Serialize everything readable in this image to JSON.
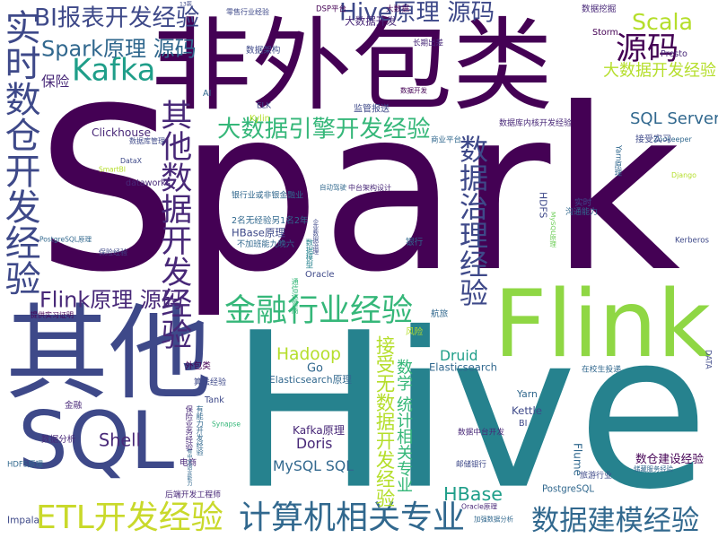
{
  "palette": {
    "dark_purple": "#440154",
    "purple": "#482878",
    "indigo": "#3e4989",
    "blue": "#31688e",
    "teal": "#26828e",
    "green_teal": "#1f9e89",
    "green": "#35b779",
    "light_green": "#6ece58",
    "lime": "#b5de2b",
    "yellow": "#c9d92b"
  },
  "words": [
    {
      "text": "Spark",
      "color": "#440154",
      "orient": "h"
    },
    {
      "text": "Hive",
      "color": "#26828e",
      "orient": "h"
    },
    {
      "text": "非外包类",
      "color": "#440154",
      "orient": "h"
    },
    {
      "text": "其他",
      "color": "#3e4989",
      "orient": "h"
    },
    {
      "text": "Flink",
      "color": "#8fd744",
      "orient": "h"
    },
    {
      "text": "SQL",
      "color": "#3e4989",
      "orient": "h"
    },
    {
      "text": "实时数仓开发经验",
      "color": "#3e4989",
      "orient": "v"
    },
    {
      "text": "其他数据开发经验",
      "color": "#482878",
      "orient": "v"
    },
    {
      "text": "数据治理经验",
      "color": "#3e4989",
      "orient": "v"
    },
    {
      "text": "BI报表开发经验",
      "color": "#3e4989",
      "orient": "h"
    },
    {
      "text": "Spark原理 源码",
      "color": "#31688e",
      "orient": "h"
    },
    {
      "text": "Kafka",
      "color": "#1f9e89",
      "orient": "h"
    },
    {
      "text": "Hive原理 源码",
      "color": "#3e4989",
      "orient": "h"
    },
    {
      "text": "Scala",
      "color": "#b5de2b",
      "orient": "h"
    },
    {
      "text": "源码",
      "color": "#440154",
      "orient": "h"
    },
    {
      "text": "大数据开发经验",
      "color": "#b5de2b",
      "orient": "h"
    },
    {
      "text": "大数据引擎开发经验",
      "color": "#35b779",
      "orient": "h"
    },
    {
      "text": "SQL Server",
      "color": "#31688e",
      "orient": "h"
    },
    {
      "text": "金融行业经验",
      "color": "#35b779",
      "orient": "h"
    },
    {
      "text": "Flink原理 源码",
      "color": "#482878",
      "orient": "h"
    },
    {
      "text": "ETL开发经验",
      "color": "#c9d92b",
      "orient": "h"
    },
    {
      "text": "计算机相关专业",
      "color": "#31688e",
      "orient": "h"
    },
    {
      "text": "数据建模经验",
      "color": "#31688e",
      "orient": "h"
    },
    {
      "text": "接受无数据开发经验",
      "color": "#b5de2b",
      "orient": "v"
    },
    {
      "text": "数学 统计相关专业",
      "color": "#35b779",
      "orient": "v"
    },
    {
      "text": "Hadoop",
      "color": "#b5de2b",
      "orient": "h"
    },
    {
      "text": "Shell",
      "color": "#482878",
      "orient": "h"
    },
    {
      "text": "MySQL SQL",
      "color": "#31688e",
      "orient": "h"
    },
    {
      "text": "HBase",
      "color": "#1f9e89",
      "orient": "h"
    },
    {
      "text": "Doris",
      "color": "#482878",
      "orient": "h"
    },
    {
      "text": "Kafka原理",
      "color": "#482878",
      "orient": "h"
    },
    {
      "text": "Druid",
      "color": "#1f9e89",
      "orient": "h"
    },
    {
      "text": "Elasticsearch",
      "color": "#31688e",
      "orient": "h"
    },
    {
      "text": "Elasticsearch原理",
      "color": "#31688e",
      "orient": "h"
    },
    {
      "text": "Go",
      "color": "#31688e",
      "orient": "h"
    },
    {
      "text": "Kettle",
      "color": "#3e4989",
      "orient": "h"
    },
    {
      "text": "数仓建设经验",
      "color": "#440154",
      "orient": "h"
    },
    {
      "text": "PostgreSQL",
      "color": "#31688e",
      "orient": "h"
    },
    {
      "text": "HBase原理",
      "color": "#3e4989",
      "orient": "h"
    },
    {
      "text": "Clickhouse",
      "color": "#482878",
      "orient": "h"
    },
    {
      "text": "保险",
      "color": "#482878",
      "orient": "h"
    },
    {
      "text": "Oracle",
      "color": "#3e4989",
      "orient": "h"
    },
    {
      "text": "Impala",
      "color": "#3e4989",
      "orient": "h"
    },
    {
      "text": "Flume",
      "color": "#31688e",
      "orient": "v"
    },
    {
      "text": "Yarn",
      "color": "#31688e",
      "orient": "h"
    },
    {
      "text": "HDFS",
      "color": "#3e4989",
      "orient": "v"
    },
    {
      "text": "Django",
      "color": "#b5de2b",
      "orient": "h"
    },
    {
      "text": "Zookeeper",
      "color": "#31688e",
      "orient": "h"
    },
    {
      "text": "Presto",
      "color": "#482878",
      "orient": "h"
    },
    {
      "text": "Storm",
      "color": "#440154",
      "orient": "h"
    },
    {
      "text": "Kerberos",
      "color": "#3e4989",
      "orient": "h"
    },
    {
      "text": "dataworks",
      "color": "#482878",
      "orient": "h"
    },
    {
      "text": "DataX",
      "color": "#3e4989",
      "orient": "h"
    },
    {
      "text": "SmartBI",
      "color": "#b5de2b",
      "orient": "h"
    },
    {
      "text": "Kylin",
      "color": "#b5de2b",
      "orient": "h"
    },
    {
      "text": "ELK",
      "color": "#3e4989",
      "orient": "h"
    },
    {
      "text": "AI",
      "color": "#31688e",
      "orient": "h"
    },
    {
      "text": "DSP平台",
      "color": "#440154",
      "orient": "h"
    },
    {
      "text": "大数据开发",
      "color": "#482878",
      "orient": "h"
    },
    {
      "text": "大数据",
      "color": "#440154",
      "orient": "h"
    },
    {
      "text": "零售行业经验",
      "color": "#3e4989",
      "orient": "h"
    },
    {
      "text": "13薪",
      "color": "#3e4989",
      "orient": "h"
    },
    {
      "text": "数据挖掘",
      "color": "#482878",
      "orient": "h"
    },
    {
      "text": "长期出差",
      "color": "#482878",
      "orient": "h"
    },
    {
      "text": "数据架构",
      "color": "#3e4989",
      "orient": "h"
    },
    {
      "text": "数据开发",
      "color": "#440154",
      "orient": "h"
    },
    {
      "text": "监管报送",
      "color": "#3e4989",
      "orient": "h"
    },
    {
      "text": "数据库内核开发经验",
      "color": "#482878",
      "orient": "h"
    },
    {
      "text": "商业平台",
      "color": "#31688e",
      "orient": "h"
    },
    {
      "text": "接受实习",
      "color": "#3e4989",
      "orient": "h"
    },
    {
      "text": "Yarn原理",
      "color": "#31688e",
      "orient": "v"
    },
    {
      "text": "数据库管理",
      "color": "#3e4989",
      "orient": "h"
    },
    {
      "text": "自动驾驶",
      "color": "#31688e",
      "orient": "h"
    },
    {
      "text": "中台架构设计",
      "color": "#482878",
      "orient": "h"
    },
    {
      "text": "银行业或非银金融业",
      "color": "#31688e",
      "orient": "h"
    },
    {
      "text": "2名无经验另1名2年",
      "color": "#31688e",
      "orient": "h"
    },
    {
      "text": "不加班能九晚六",
      "color": "#31688e",
      "orient": "h"
    },
    {
      "text": "PostgreSQL原理",
      "color": "#31688e",
      "orient": "h"
    },
    {
      "text": "保险经验",
      "color": "#3e4989",
      "orient": "h"
    },
    {
      "text": "提供实习证明",
      "color": "#440154",
      "orient": "h"
    },
    {
      "text": "银行",
      "color": "#31688e",
      "orient": "h"
    },
    {
      "text": "数据模型",
      "color": "#26828e",
      "orient": "v"
    },
    {
      "text": "电商",
      "color": "#482878",
      "orient": "h"
    },
    {
      "text": "MySQL原理",
      "color": "#6ece58",
      "orient": "v"
    },
    {
      "text": "沟通能力",
      "color": "#31688e",
      "orient": "h"
    },
    {
      "text": "实时",
      "color": "#3e4989",
      "orient": "h"
    },
    {
      "text": "航旅",
      "color": "#31688e",
      "orient": "h"
    },
    {
      "text": "风险",
      "color": "#b5de2b",
      "orient": "h"
    },
    {
      "text": "外包类",
      "color": "#440154",
      "orient": "h"
    },
    {
      "text": "算法经验",
      "color": "#3e4989",
      "orient": "h"
    },
    {
      "text": "Tank",
      "color": "#3e4989",
      "orient": "h"
    },
    {
      "text": "金融",
      "color": "#482878",
      "orient": "h"
    },
    {
      "text": "数据分析",
      "color": "#482878",
      "orient": "h"
    },
    {
      "text": "后端开发工程师",
      "color": "#482878",
      "orient": "h"
    },
    {
      "text": "HDFS原理",
      "color": "#31688e",
      "orient": "h"
    },
    {
      "text": "在校生投递",
      "color": "#31688e",
      "orient": "h"
    },
    {
      "text": "DATA",
      "color": "#3e4989",
      "orient": "v"
    },
    {
      "text": "BI",
      "color": "#3e4989",
      "orient": "h"
    },
    {
      "text": "数据中台开发",
      "color": "#482878",
      "orient": "h"
    },
    {
      "text": "邮储银行",
      "color": "#3e4989",
      "orient": "h"
    },
    {
      "text": "Oracle原理",
      "color": "#482878",
      "orient": "h"
    },
    {
      "text": "加强数据分析",
      "color": "#31688e",
      "orient": "h"
    },
    {
      "text": "旅游行业",
      "color": "#3e4989",
      "orient": "h"
    },
    {
      "text": "储藏服务经验",
      "color": "#31688e",
      "orient": "h"
    },
    {
      "text": "Synapse",
      "color": "#35b779",
      "orient": "h"
    },
    {
      "text": "保险业务经验",
      "color": "#482878",
      "orient": "v"
    },
    {
      "text": "有能力开发经验",
      "color": "#31688e",
      "orient": "v"
    },
    {
      "text": "有中文语言能力",
      "color": "#31688e",
      "orient": "v"
    },
    {
      "text": "企业数据治理",
      "color": "#3e4989",
      "orient": "v"
    },
    {
      "text": "通信运营商",
      "color": "#35b779",
      "orient": "v"
    }
  ]
}
